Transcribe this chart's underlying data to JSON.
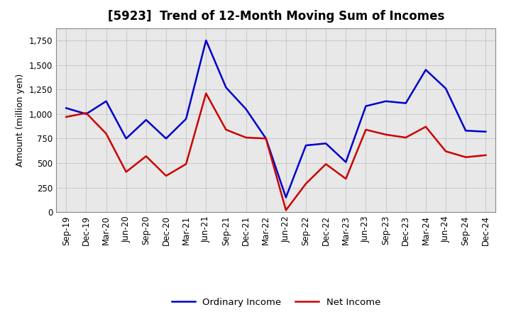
{
  "title": "[5923]  Trend of 12-Month Moving Sum of Incomes",
  "ylabel": "Amount (million yen)",
  "x_labels": [
    "Sep-19",
    "Dec-19",
    "Mar-20",
    "Jun-20",
    "Sep-20",
    "Dec-20",
    "Mar-21",
    "Jun-21",
    "Sep-21",
    "Dec-21",
    "Mar-22",
    "Jun-22",
    "Sep-22",
    "Dec-22",
    "Mar-23",
    "Jun-23",
    "Sep-23",
    "Dec-23",
    "Mar-24",
    "Jun-24",
    "Sep-24",
    "Dec-24"
  ],
  "ordinary_income": [
    1060,
    1000,
    1130,
    750,
    940,
    750,
    950,
    1750,
    1270,
    1050,
    750,
    150,
    680,
    700,
    510,
    1080,
    1130,
    1110,
    1450,
    1260,
    830,
    820
  ],
  "net_income": [
    970,
    1010,
    800,
    410,
    570,
    370,
    490,
    1210,
    840,
    760,
    750,
    20,
    290,
    490,
    340,
    840,
    790,
    760,
    870,
    620,
    560,
    580
  ],
  "ordinary_income_color": "#0000cc",
  "net_income_color": "#cc0000",
  "ylim": [
    0,
    1875
  ],
  "yticks": [
    0,
    250,
    500,
    750,
    1000,
    1250,
    1500,
    1750
  ],
  "background_color": "#ffffff",
  "plot_bg_color": "#e8e8e8",
  "grid_color": "#888888",
  "legend_labels": [
    "Ordinary Income",
    "Net Income"
  ],
  "title_fontsize": 12,
  "label_fontsize": 9,
  "tick_fontsize": 8.5
}
